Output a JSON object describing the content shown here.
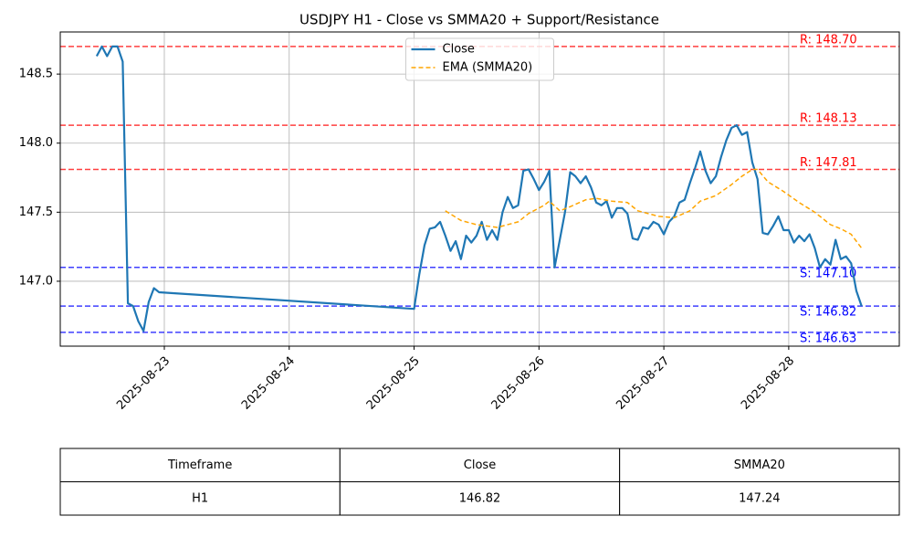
{
  "chart_data": {
    "type": "line",
    "title": "USDJPY H1 - Close vs SMMA20 + Support/Resistance",
    "series": [
      {
        "name": "Close",
        "color": "#1f77b4",
        "style": "solid",
        "x": [
          "2025-08-22 11:00",
          "2025-08-22 12:00",
          "2025-08-22 13:00",
          "2025-08-22 14:00",
          "2025-08-22 15:00",
          "2025-08-22 16:00",
          "2025-08-22 17:00",
          "2025-08-22 18:00",
          "2025-08-22 19:00",
          "2025-08-22 20:00",
          "2025-08-22 21:00",
          "2025-08-22 22:00",
          "2025-08-22 23:00",
          "2025-08-25 00:00",
          "2025-08-25 01:00",
          "2025-08-25 02:00",
          "2025-08-25 03:00",
          "2025-08-25 04:00",
          "2025-08-25 05:00",
          "2025-08-25 06:00",
          "2025-08-25 07:00",
          "2025-08-25 08:00",
          "2025-08-25 09:00",
          "2025-08-25 10:00",
          "2025-08-25 11:00",
          "2025-08-25 12:00",
          "2025-08-25 13:00",
          "2025-08-25 14:00",
          "2025-08-25 15:00",
          "2025-08-25 16:00",
          "2025-08-25 17:00",
          "2025-08-25 18:00",
          "2025-08-25 19:00",
          "2025-08-25 20:00",
          "2025-08-25 21:00",
          "2025-08-25 22:00",
          "2025-08-25 23:00",
          "2025-08-26 00:00",
          "2025-08-26 01:00",
          "2025-08-26 02:00",
          "2025-08-26 03:00",
          "2025-08-26 04:00",
          "2025-08-26 05:00",
          "2025-08-26 06:00",
          "2025-08-26 07:00",
          "2025-08-26 08:00",
          "2025-08-26 09:00",
          "2025-08-26 10:00",
          "2025-08-26 11:00",
          "2025-08-26 12:00",
          "2025-08-26 13:00",
          "2025-08-26 14:00",
          "2025-08-26 15:00",
          "2025-08-26 16:00",
          "2025-08-26 17:00",
          "2025-08-26 18:00",
          "2025-08-26 19:00",
          "2025-08-26 20:00",
          "2025-08-26 21:00",
          "2025-08-26 22:00",
          "2025-08-26 23:00",
          "2025-08-27 00:00",
          "2025-08-27 01:00",
          "2025-08-27 02:00",
          "2025-08-27 03:00",
          "2025-08-27 04:00",
          "2025-08-27 05:00",
          "2025-08-27 06:00",
          "2025-08-27 07:00",
          "2025-08-27 08:00",
          "2025-08-27 09:00",
          "2025-08-27 10:00",
          "2025-08-27 11:00",
          "2025-08-27 12:00",
          "2025-08-27 13:00",
          "2025-08-27 14:00",
          "2025-08-27 15:00",
          "2025-08-27 16:00",
          "2025-08-27 17:00",
          "2025-08-27 18:00",
          "2025-08-27 19:00",
          "2025-08-27 20:00",
          "2025-08-27 21:00",
          "2025-08-27 22:00",
          "2025-08-27 23:00",
          "2025-08-28 00:00",
          "2025-08-28 01:00",
          "2025-08-28 02:00",
          "2025-08-28 03:00",
          "2025-08-28 04:00",
          "2025-08-28 05:00",
          "2025-08-28 06:00",
          "2025-08-28 07:00",
          "2025-08-28 08:00",
          "2025-08-28 09:00",
          "2025-08-28 10:00",
          "2025-08-28 11:00",
          "2025-08-28 12:00",
          "2025-08-28 13:00",
          "2025-08-28 14:00"
        ],
        "values": [
          148.63,
          148.7,
          148.63,
          148.7,
          148.7,
          148.59,
          146.84,
          146.82,
          146.71,
          146.64,
          146.85,
          146.95,
          146.92,
          146.8,
          147.05,
          147.26,
          147.38,
          147.39,
          147.43,
          147.33,
          147.22,
          147.29,
          147.16,
          147.33,
          147.28,
          147.33,
          147.43,
          147.3,
          147.37,
          147.3,
          147.5,
          147.61,
          147.53,
          147.55,
          147.8,
          147.81,
          147.74,
          147.66,
          147.72,
          147.8,
          147.1,
          147.3,
          147.5,
          147.79,
          147.76,
          147.71,
          147.76,
          147.68,
          147.57,
          147.55,
          147.58,
          147.46,
          147.53,
          147.53,
          147.49,
          147.31,
          147.3,
          147.39,
          147.38,
          147.43,
          147.41,
          147.34,
          147.43,
          147.47,
          147.57,
          147.59,
          147.71,
          147.82,
          147.94,
          147.8,
          147.71,
          147.76,
          147.9,
          148.02,
          148.11,
          148.13,
          148.06,
          148.08,
          147.86,
          147.74,
          147.35,
          147.34,
          147.4,
          147.47,
          147.37,
          147.37,
          147.28,
          147.33,
          147.29,
          147.34,
          147.24,
          147.1,
          147.16,
          147.12,
          147.3,
          147.16,
          147.18,
          147.13,
          146.93,
          146.82
        ]
      },
      {
        "name": "EMA (SMMA20)",
        "color": "#ffa500",
        "style": "dashed",
        "x": [
          "2025-08-25 06:00",
          "2025-08-25 09:00",
          "2025-08-25 12:00",
          "2025-08-25 16:00",
          "2025-08-25 20:00",
          "2025-08-25 22:00",
          "2025-08-26 01:00",
          "2025-08-26 02:00",
          "2025-08-26 04:00",
          "2025-08-26 06:00",
          "2025-08-26 09:00",
          "2025-08-26 11:00",
          "2025-08-26 14:00",
          "2025-08-26 17:00",
          "2025-08-26 19:00",
          "2025-08-26 23:00",
          "2025-08-27 02:00",
          "2025-08-27 05:00",
          "2025-08-27 07:00",
          "2025-08-27 10:00",
          "2025-08-27 13:00",
          "2025-08-27 15:00",
          "2025-08-27 17:00",
          "2025-08-27 18:00",
          "2025-08-27 20:00",
          "2025-08-27 23:00",
          "2025-08-28 02:00",
          "2025-08-28 05:00",
          "2025-08-28 08:00",
          "2025-08-28 10:00",
          "2025-08-28 12:00",
          "2025-08-28 14:00"
        ],
        "values": [
          147.51,
          147.44,
          147.41,
          147.39,
          147.43,
          147.49,
          147.55,
          147.58,
          147.51,
          147.54,
          147.59,
          147.6,
          147.58,
          147.57,
          147.51,
          147.47,
          147.46,
          147.51,
          147.58,
          147.62,
          147.7,
          147.76,
          147.81,
          147.81,
          147.72,
          147.65,
          147.57,
          147.5,
          147.41,
          147.38,
          147.34,
          147.24
        ]
      }
    ],
    "levels": [
      {
        "value": 148.7,
        "label": "R: 148.70",
        "color": "red"
      },
      {
        "value": 148.13,
        "label": "R: 148.13",
        "color": "red"
      },
      {
        "value": 147.81,
        "label": "R: 147.81",
        "color": "red"
      },
      {
        "value": 147.1,
        "label": "S: 147.10",
        "color": "blue"
      },
      {
        "value": 146.82,
        "label": "S: 146.82",
        "color": "blue"
      },
      {
        "value": 146.63,
        "label": "S: 146.63",
        "color": "blue"
      }
    ],
    "xlim": [
      "2025-08-22 04:00",
      "2025-08-28 21:15"
    ],
    "xticks": [
      "2025-08-23",
      "2025-08-24",
      "2025-08-25",
      "2025-08-26",
      "2025-08-27",
      "2025-08-28"
    ],
    "ylim": [
      146.53,
      148.805
    ],
    "yticks": [
      {
        "value": 147,
        "label": "147.0"
      },
      147.5,
      {
        "value": 148,
        "label": "148.0"
      },
      148.5
    ],
    "grid": true,
    "legend": "upper center"
  },
  "table": {
    "header": [
      "Timeframe",
      "Close",
      "SMMA20"
    ],
    "rows": [
      [
        "H1",
        "146.82",
        "147.24"
      ]
    ]
  }
}
